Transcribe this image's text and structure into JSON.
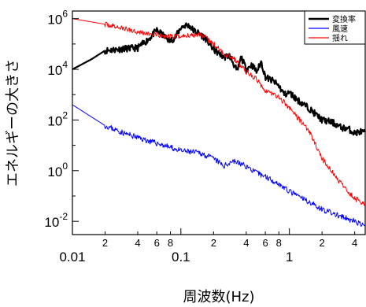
{
  "chart_data": {
    "type": "line",
    "xlabel": "周波数(Hz)",
    "ylabel": "エネルギーの大きさ",
    "x_scale": "log",
    "y_scale": "log",
    "xlim": [
      0.01,
      5
    ],
    "ylim": [
      0.003,
      2000000
    ],
    "x_major_ticks": [
      {
        "value": 0.01,
        "label": "0.01"
      },
      {
        "value": 0.1,
        "label": "0.1"
      },
      {
        "value": 1,
        "label": "1"
      }
    ],
    "x_minor_ticks": [
      {
        "value": 0.02,
        "label": "2"
      },
      {
        "value": 0.04,
        "label": "4"
      },
      {
        "value": 0.06,
        "label": "6"
      },
      {
        "value": 0.08,
        "label": "8"
      },
      {
        "value": 0.2,
        "label": "2"
      },
      {
        "value": 0.4,
        "label": "4"
      },
      {
        "value": 0.6,
        "label": "6"
      },
      {
        "value": 0.8,
        "label": "8"
      },
      {
        "value": 2,
        "label": "2"
      },
      {
        "value": 4,
        "label": "4"
      }
    ],
    "y_major_ticks": [
      {
        "value": 0.01,
        "base": "10",
        "exp": "-2"
      },
      {
        "value": 1,
        "base": "10",
        "exp": "0"
      },
      {
        "value": 100,
        "base": "10",
        "exp": "2"
      },
      {
        "value": 10000,
        "base": "10",
        "exp": "4"
      },
      {
        "value": 1000000,
        "base": "10",
        "exp": "6"
      }
    ],
    "grid": false,
    "legend_position": "top-right",
    "series": [
      {
        "name": "変換率",
        "color": "#000000",
        "x": [
          0.01,
          0.015,
          0.02,
          0.03,
          0.04,
          0.05,
          0.06,
          0.07,
          0.08,
          0.09,
          0.1,
          0.11,
          0.12,
          0.13,
          0.15,
          0.17,
          0.2,
          0.22,
          0.25,
          0.28,
          0.3,
          0.33,
          0.36,
          0.4,
          0.45,
          0.5,
          0.55,
          0.6,
          0.7,
          0.8,
          0.9,
          1.0,
          1.2,
          1.5,
          2.0,
          2.5,
          3.0,
          3.5,
          4.0,
          4.5,
          5.0
        ],
        "values": [
          10000,
          25000,
          55000,
          65000,
          70000,
          150000,
          350000,
          200000,
          130000,
          200000,
          450000,
          550000,
          520000,
          350000,
          250000,
          160000,
          60000,
          45000,
          30000,
          35000,
          20000,
          8000,
          30000,
          10000,
          15000,
          8000,
          20000,
          5000,
          3500,
          2200,
          1000,
          1200,
          600,
          300,
          100,
          80,
          50,
          45,
          30,
          35,
          30
        ],
        "noise": 0.26,
        "seed": 11
      },
      {
        "name": "風速",
        "color": "#0000ff",
        "x": [
          0.01,
          0.02,
          0.03,
          0.05,
          0.07,
          0.1,
          0.15,
          0.2,
          0.25,
          0.3,
          0.4,
          0.5,
          0.6,
          0.8,
          1.0,
          1.5,
          2.0,
          3.0,
          4.0,
          5.0
        ],
        "values": [
          400,
          60,
          30,
          15,
          10,
          6,
          5,
          3,
          1.5,
          2.5,
          1.5,
          0.8,
          0.6,
          0.3,
          0.15,
          0.06,
          0.03,
          0.015,
          0.01,
          0.006
        ],
        "noise": 0.22,
        "seed": 23
      },
      {
        "name": "揺れ",
        "color": "#ff0000",
        "x": [
          0.01,
          0.02,
          0.03,
          0.05,
          0.07,
          0.1,
          0.15,
          0.2,
          0.25,
          0.3,
          0.4,
          0.5,
          0.6,
          0.8,
          1.0,
          1.5,
          2.0,
          3.0,
          4.0,
          5.0
        ],
        "values": [
          1000000,
          600000,
          400000,
          250000,
          200000,
          200000,
          250000,
          100000,
          40000,
          30000,
          8000,
          4000,
          1500,
          800,
          300,
          40,
          3,
          0.3,
          0.08,
          0.05
        ],
        "noise": 0.2,
        "seed": 37
      }
    ]
  }
}
